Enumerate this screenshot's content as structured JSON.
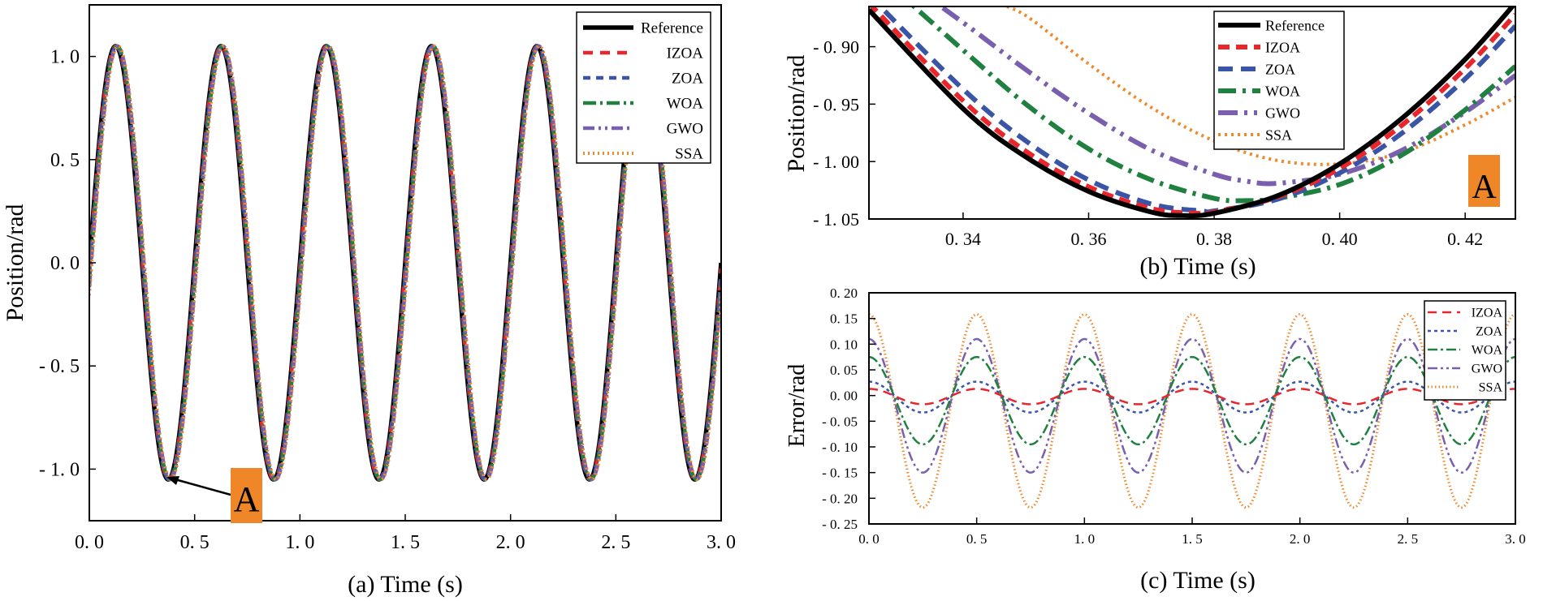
{
  "colors": {
    "Reference": "#000000",
    "IZOA": "#e8262b",
    "ZOA": "#3b55a6",
    "WOA": "#1f8040",
    "GWO": "#7a5fae",
    "SSA": "#ee8a2c",
    "marker_bg": "#ef8628"
  },
  "chart_data": [
    {
      "id": "a",
      "type": "line",
      "title": "",
      "xlabel": "(a) Time (s)",
      "ylabel": "Position/rad",
      "xlim": [
        0,
        3.0
      ],
      "ylim": [
        -1.25,
        1.25
      ],
      "xticks": [
        "0. 0",
        "0. 5",
        "1. 0",
        "1. 5",
        "2. 0",
        "2. 5",
        "3. 0"
      ],
      "yticks": [
        "1. 0",
        "0. 5",
        "0. 0",
        "- 0. 5",
        "- 1. 0"
      ],
      "legend": [
        "Reference",
        "IZOA",
        "ZOA",
        "WOA",
        "GWO",
        "SSA"
      ],
      "legend_position": "top-right",
      "signal": {
        "amplitude": 1.05,
        "frequency_hz": 2.0
      },
      "series": [
        {
          "name": "Reference",
          "phase_lag_s": 0.0
        },
        {
          "name": "IZOA",
          "phase_lag_s": 0.002
        },
        {
          "name": "ZOA",
          "phase_lag_s": 0.004
        },
        {
          "name": "WOA",
          "phase_lag_s": 0.007
        },
        {
          "name": "GWO",
          "phase_lag_s": 0.009
        },
        {
          "name": "SSA",
          "phase_lag_s": 0.012
        }
      ],
      "annotation": {
        "label": "A",
        "points_to": [
          0.375,
          -1.05
        ]
      }
    },
    {
      "id": "b",
      "type": "line",
      "title": "",
      "xlabel": "(b) Time (s)",
      "ylabel": "Position/rad",
      "xlim": [
        0.325,
        0.428
      ],
      "ylim": [
        -1.05,
        -0.865
      ],
      "xticks": [
        "0. 34",
        "0. 36",
        "0. 38",
        "0. 40",
        "0. 42"
      ],
      "yticks": [
        "- 0. 90",
        "- 0. 95",
        "- 1. 00",
        "- 1. 05"
      ],
      "legend": [
        "Reference",
        "IZOA",
        "ZOA",
        "WOA",
        "GWO",
        "SSA"
      ],
      "legend_position": "top-right",
      "series": [
        {
          "name": "Reference",
          "x": [
            0.325,
            0.34,
            0.35,
            0.36,
            0.37,
            0.375,
            0.38,
            0.39,
            0.4,
            0.41,
            0.42,
            0.428
          ],
          "y": [
            -0.868,
            -0.954,
            -0.996,
            -1.026,
            -1.044,
            -1.047,
            -1.045,
            -1.03,
            -1.002,
            -0.962,
            -0.911,
            -0.862
          ]
        },
        {
          "name": "IZOA",
          "x": [
            0.325,
            0.34,
            0.35,
            0.36,
            0.37,
            0.377,
            0.38,
            0.39,
            0.4,
            0.41,
            0.42,
            0.428
          ],
          "y": [
            -0.862,
            -0.947,
            -0.991,
            -1.022,
            -1.041,
            -1.045,
            -1.044,
            -1.031,
            -1.006,
            -0.968,
            -0.919,
            -0.872
          ]
        },
        {
          "name": "ZOA",
          "x": [
            0.325,
            0.34,
            0.35,
            0.36,
            0.37,
            0.378,
            0.38,
            0.39,
            0.4,
            0.41,
            0.42,
            0.428
          ],
          "y": [
            -0.855,
            -0.937,
            -0.982,
            -1.016,
            -1.037,
            -1.043,
            -1.043,
            -1.033,
            -1.01,
            -0.975,
            -0.928,
            -0.882
          ]
        },
        {
          "name": "WOA",
          "x": [
            0.325,
            0.34,
            0.35,
            0.36,
            0.37,
            0.38,
            0.385,
            0.39,
            0.4,
            0.41,
            0.42,
            0.428
          ],
          "y": [
            -0.83,
            -0.903,
            -0.95,
            -0.989,
            -1.016,
            -1.032,
            -1.034,
            -1.032,
            -1.02,
            -0.994,
            -0.955,
            -0.917
          ]
        },
        {
          "name": "GWO",
          "x": [
            0.325,
            0.34,
            0.35,
            0.36,
            0.37,
            0.38,
            0.385,
            0.39,
            0.4,
            0.41,
            0.42,
            0.428
          ],
          "y": [
            -0.82,
            -0.879,
            -0.92,
            -0.958,
            -0.99,
            -1.011,
            -1.017,
            -1.019,
            -1.011,
            -0.99,
            -0.957,
            -0.925
          ]
        },
        {
          "name": "SSA",
          "x": [
            0.345,
            0.35,
            0.36,
            0.37,
            0.38,
            0.39,
            0.4,
            0.41,
            0.42,
            0.428
          ],
          "y": [
            -0.862,
            -0.873,
            -0.915,
            -0.953,
            -0.982,
            -0.999,
            -1.002,
            -0.992,
            -0.968,
            -0.944
          ]
        }
      ],
      "annotation": {
        "label": "A"
      }
    },
    {
      "id": "c",
      "type": "line",
      "title": "",
      "xlabel": "(c) Time (s)",
      "ylabel": "Error/rad",
      "xlim": [
        0,
        3.0
      ],
      "ylim": [
        -0.25,
        0.2
      ],
      "xticks": [
        "0. 0",
        "0. 5",
        "1. 0",
        "1. 5",
        "2. 0",
        "2. 5",
        "3. 0"
      ],
      "yticks": [
        "0. 20",
        "0. 15",
        "0. 10",
        "0. 05",
        "0. 00",
        "- 0. 05",
        "- 0. 10",
        "- 0. 15",
        "- 0. 20",
        "- 0. 25"
      ],
      "legend": [
        "IZOA",
        "ZOA",
        "WOA",
        "GWO",
        "SSA"
      ],
      "legend_position": "top-right",
      "signal": {
        "frequency_hz": 2.0,
        "form": "offset + amplitude * cos"
      },
      "series": [
        {
          "name": "IZOA",
          "amplitude": 0.015,
          "offset": -0.002
        },
        {
          "name": "ZOA",
          "amplitude": 0.03,
          "offset": -0.003
        },
        {
          "name": "WOA",
          "amplitude": 0.085,
          "offset": -0.01
        },
        {
          "name": "GWO",
          "amplitude": 0.13,
          "offset": -0.02
        },
        {
          "name": "SSA",
          "amplitude": 0.188,
          "offset": -0.03
        }
      ]
    }
  ]
}
